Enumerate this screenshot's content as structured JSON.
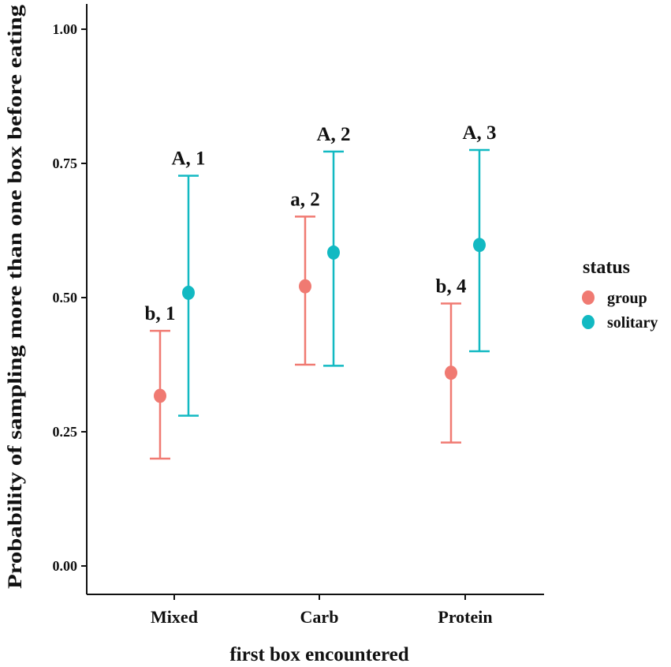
{
  "chart_data": {
    "type": "scatter",
    "title": "",
    "xlabel": "first box encountered",
    "ylabel": "Probability of sampling more than one box before eating",
    "categories": [
      "Mixed",
      "Carb",
      "Protein"
    ],
    "ylim": [
      0,
      1.03
    ],
    "yticks": [
      0,
      0.25,
      0.5,
      0.75,
      1
    ],
    "ytick_labels": [
      "0.00",
      "0.25",
      "0.50",
      "0.75",
      "1.00"
    ],
    "grid": false,
    "legend": {
      "title": "status",
      "position": "right"
    },
    "series": [
      {
        "name": "group",
        "color": "#F07A72",
        "values": [
          0.317,
          0.521,
          0.36
        ],
        "lower": [
          0.2,
          0.375,
          0.23
        ],
        "upper": [
          0.438,
          0.651,
          0.489
        ],
        "labels": [
          "b, 1",
          "a, 2",
          "b, 4"
        ]
      },
      {
        "name": "solitary",
        "color": "#12B9C2",
        "values": [
          0.509,
          0.584,
          0.598
        ],
        "lower": [
          0.28,
          0.373,
          0.4
        ],
        "upper": [
          0.727,
          0.772,
          0.775
        ],
        "labels": [
          "A, 1",
          "A, 2",
          "A, 3"
        ]
      }
    ]
  }
}
